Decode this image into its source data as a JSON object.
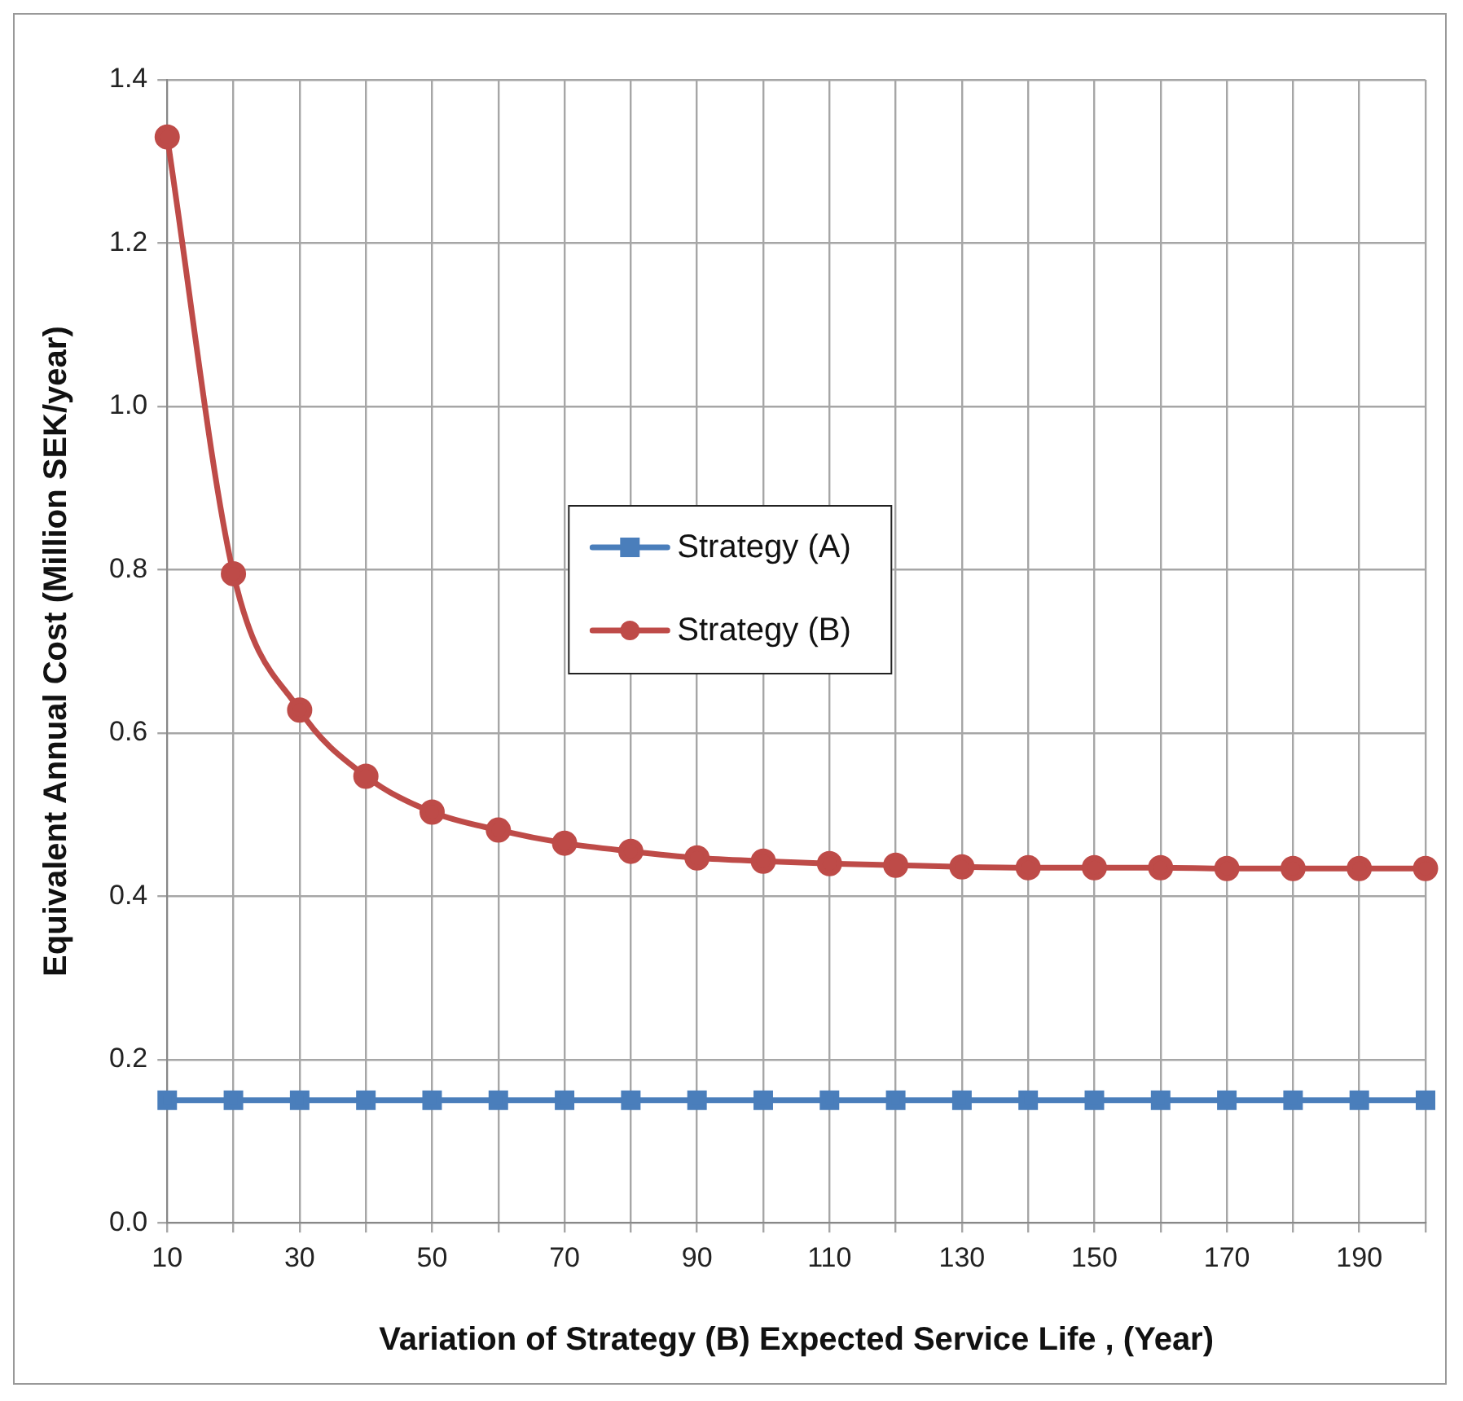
{
  "chart_data": {
    "type": "line",
    "xlabel": "Variation of Strategy (B) Expected Service Life , (Year)",
    "ylabel": "Equivalent Annual Cost (Million SEK/year)",
    "categories": [
      "10",
      null,
      "30",
      null,
      "50",
      null,
      "70",
      null,
      "90",
      null,
      "110",
      null,
      "130",
      null,
      "150",
      null,
      "170",
      null,
      "190",
      null
    ],
    "series": [
      {
        "name": "Strategy (A)",
        "color": "#4a7ebb",
        "marker": "square",
        "values": [
          0.15,
          0.15,
          0.15,
          0.15,
          0.15,
          0.15,
          0.15,
          0.15,
          0.15,
          0.15,
          0.15,
          0.15,
          0.15,
          0.15,
          0.15,
          0.15,
          0.15,
          0.15,
          0.15,
          0.15
        ]
      },
      {
        "name": "Strategy (B)",
        "color": "#be4b48",
        "marker": "circle",
        "values": [
          1.33,
          0.795,
          0.628,
          0.547,
          0.503,
          0.481,
          0.465,
          0.455,
          0.447,
          0.443,
          0.44,
          0.438,
          0.436,
          0.435,
          0.435,
          0.435,
          0.434,
          0.434,
          0.434,
          0.434
        ]
      }
    ],
    "ylim": [
      0,
      1.4
    ],
    "yticks": [
      {
        "value": 0,
        "label": "0.0"
      },
      {
        "value": 0.2,
        "label": "0.2"
      },
      {
        "value": 0.4,
        "label": "0.4"
      },
      {
        "value": 0.6,
        "label": "0.6"
      },
      {
        "value": 0.8,
        "label": "0.8"
      },
      {
        "value": 1,
        "label": "1.0"
      },
      {
        "value": 1.2,
        "label": "1.2"
      },
      {
        "value": 1.4,
        "label": "1.4"
      }
    ],
    "grid": true,
    "legend": "center",
    "line_style": "solid"
  }
}
